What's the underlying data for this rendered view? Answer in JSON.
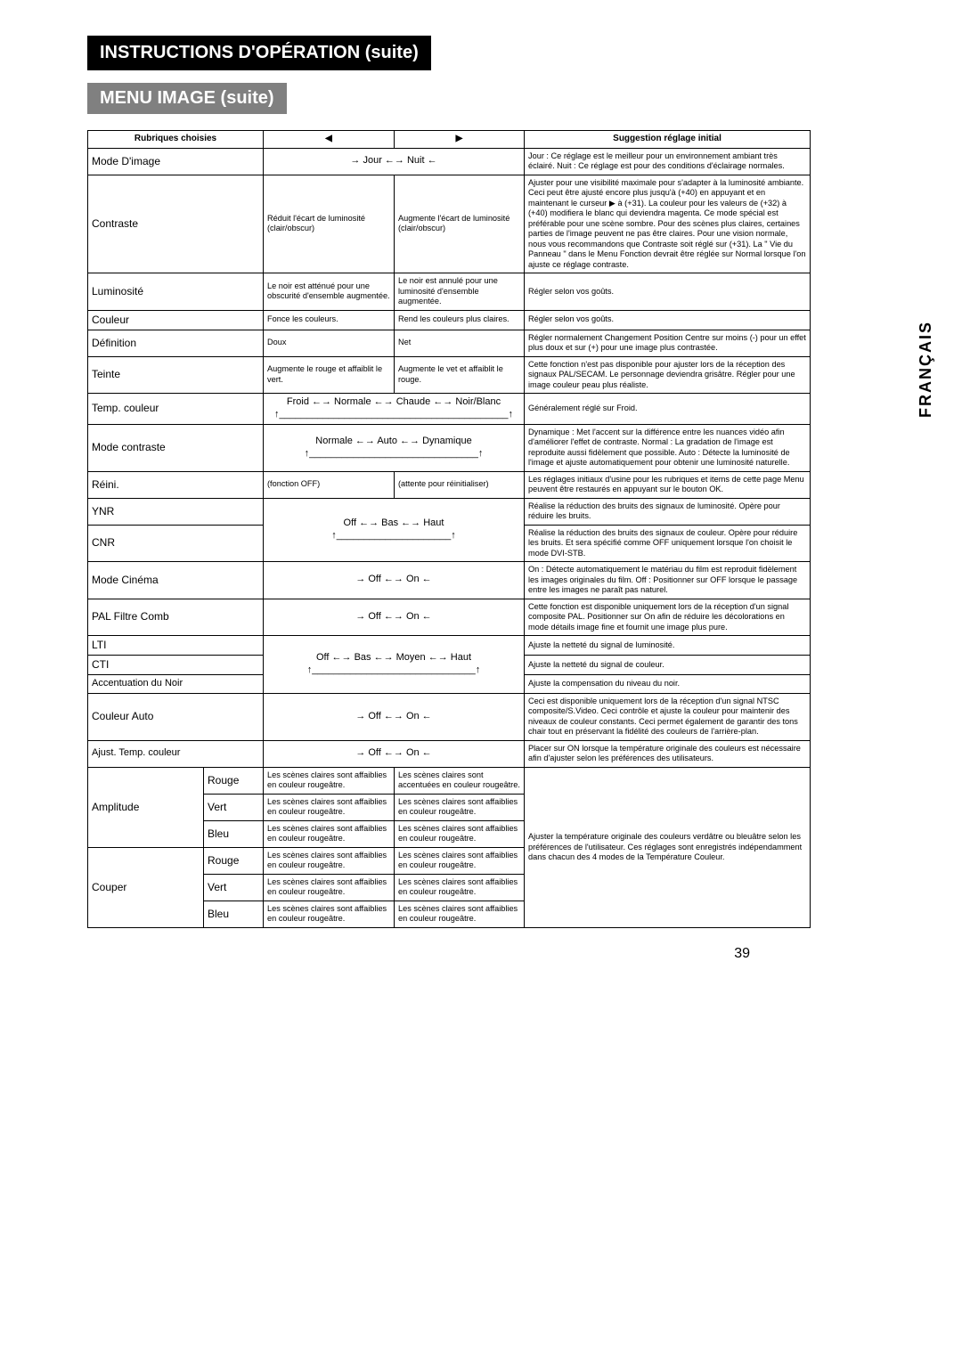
{
  "page_number": "39",
  "side_label": "FRANÇAIS",
  "title": "INSTRUCTIONS D'OPÉRATION (suite)",
  "subtitle": "MENU IMAGE  (suite)",
  "headers": {
    "col1": "Rubriques choisies",
    "col2_left": "◀",
    "col2_right": "▶",
    "col4": "Suggestion réglage initial"
  },
  "rows": {
    "mode_image": {
      "label": "Mode D'image",
      "center": "→ Jour ←→ Nuit ←",
      "sugg": "Jour : Ce réglage est le meilleur pour un environnement ambiant très éclairé.\nNuit : Ce réglage est pour des conditions d'éclairage normales."
    },
    "contraste": {
      "label": "Contraste",
      "left": "Réduit l'écart de luminosité (clair/obscur)",
      "right": "Augmente l'écart de luminosité (clair/obscur)",
      "sugg": "Ajuster pour une visibilité maximale pour s'adapter à la luminosité ambiante. Ceci peut être ajusté encore plus jusqu'à (+40) en appuyant et en maintenant le curseur ▶ à (+31). La couleur pour les valeurs de (+32) à (+40) modifiera le blanc qui deviendra magenta. Ce mode spécial est préférable pour une scène sombre. Pour des scènes plus claires, certaines parties de l'image peuvent ne pas être claires. Pour une vision normale, nous vous recommandons que Contraste soit réglé sur (+31). La \" Vie du Panneau \" dans le Menu Fonction devrait être réglée sur Normal lorsque l'on ajuste ce réglage contraste."
    },
    "luminosite": {
      "label": "Luminosité",
      "left": "Le noir est atténué pour une obscurité d'ensemble augmentée.",
      "right": "Le noir est annulé pour une luminosité d'ensemble augmentée.",
      "sugg": "Régler selon vos goûts."
    },
    "couleur": {
      "label": "Couleur",
      "left": "Fonce les couleurs.",
      "right": "Rend les couleurs plus claires.",
      "sugg": "Régler selon vos goûts."
    },
    "definition": {
      "label": "Définition",
      "left": "Doux",
      "right": "Net",
      "sugg": "Régler normalement Changement Position Centre sur moins (-) pour un effet plus doux et sur (+) pour une image plus contrastée."
    },
    "teinte": {
      "label": "Teinte",
      "left": "Augmente le rouge et affaiblit le vert.",
      "right": "Augmente le vet et affaiblit le rouge.",
      "sugg": "Cette fonction n'est pas disponible pour ajuster lors de la réception des signaux PAL/SECAM. Le personnage deviendra grisâtre. Régler pour une image couleur peau plus réaliste."
    },
    "temp_couleur": {
      "label": "Temp. couleur",
      "center": "Froid ←→ Normale ←→ Chaude ←→ Noir/Blanc",
      "sugg": "Généralement réglé sur Froid."
    },
    "mode_contraste": {
      "label": "Mode contraste",
      "center": "Normale ←→ Auto ←→ Dynamique",
      "sugg": "Dynamique : Met l'accent sur la différence entre les nuances vidéo afin d'améliorer l'effet de contraste.\nNormal : La gradation de l'image est reproduite aussi fidèlement que possible.\nAuto : Détecte la luminosité de l'image et ajuste automatiquement pour obtenir une luminosité naturelle."
    },
    "reini": {
      "label": "Réini.",
      "left": "(fonction OFF)",
      "right": "(attente pour réinitialiser)",
      "sugg": "Les réglages initiaux d'usine pour les rubriques et items de cette page Menu peuvent être restaurés en appuyant sur le bouton OK."
    },
    "ynr": {
      "label": "YNR",
      "center_shared": "Off ←→ Bas ←→ Haut",
      "sugg": "Réalise la réduction des bruits des signaux de luminosité. Opère pour réduire les bruits."
    },
    "cnr": {
      "label": "CNR",
      "sugg": "Réalise la réduction des bruits des signaux de couleur. Opère pour réduire les bruits. Et sera spécifié comme OFF uniquement lorsque l'on choisit le mode DVI-STB."
    },
    "mode_cinema": {
      "label": "Mode Cinéma",
      "center": "→ Off ←→ On ←",
      "sugg": "On : Détecte automatiquement le matériau du film est reproduit fidèlement les images originales du film.\nOff : Positionner sur OFF lorsque le passage entre les images ne paraît pas naturel."
    },
    "pal_filtre": {
      "label": "PAL Filtre Comb",
      "center": "→ Off ←→ On ←",
      "sugg": "Cette fonction est disponible uniquement lors de la réception d'un signal composite PAL. Positionner sur On afin de réduire les décolorations en mode détails image fine et fournit une image plus pure."
    },
    "lti": {
      "label": "LTI",
      "center_shared": "Off ←→ Bas ←→ Moyen ←→ Haut",
      "sugg": "Ajuste la netteté du signal de luminosité."
    },
    "cti": {
      "label": "CTI",
      "sugg": "Ajuste la netteté du signal de couleur."
    },
    "accent_noir": {
      "label": "Accentuation du Noir",
      "sugg": "Ajuste la compensation du niveau du noir."
    },
    "couleur_auto": {
      "label": "Couleur Auto",
      "center": "→ Off ←→ On ←",
      "sugg": "Ceci est disponible uniquement lors de la réception d'un signal NTSC composite/S.Video. Ceci contrôle et ajuste la couleur pour maintenir des niveaux de couleur constants. Ceci permet également de garantir des tons chair tout en préservant la fidélité des couleurs de l'arrière-plan."
    },
    "ajust_temp": {
      "label": "Ajust. Temp. couleur",
      "center": "→ Off ←→ On ←",
      "sugg": "Placer sur ON lorsque la température originale des couleurs est nécessaire afin d'ajuster selon les préférences des utilisateurs."
    },
    "amplitude": {
      "label": "Amplitude",
      "rouge_l": "Les scènes claires sont affaiblies en couleur rougeâtre.",
      "rouge_r": "Les scènes claires sont accentuées en couleur rougeâtre.",
      "vert_l": "Les scènes claires sont affaiblies en couleur rougeâtre.",
      "vert_r": "Les scènes claires sont affaiblies en couleur rougeâtre.",
      "bleu_l": "Les scènes claires sont affaiblies en couleur rougeâtre.",
      "bleu_r": "Les scènes claires sont affaiblies en couleur rougeâtre."
    },
    "couper": {
      "label": "Couper",
      "rouge_l": "Les scènes claires sont affaiblies en couleur rougeâtre.",
      "rouge_r": "Les scènes claires sont affaiblies en couleur rougeâtre.",
      "vert_l": "Les scènes claires sont affaiblies en couleur rougeâtre.",
      "vert_r": "Les scènes claires sont affaiblies en couleur rougeâtre.",
      "bleu_l": "Les scènes claires sont affaiblies en couleur rougeâtre.",
      "bleu_r": "Les scènes claires sont affaiblies en couleur rougeâtre."
    },
    "amp_couper_sugg": "Ajuster la température originale des couleurs verdâtre ou bleuâtre selon les préférences de l'utilisateur. Ces réglages sont enregistrés indépendamment dans chacun des 4 modes de la Température Couleur.",
    "sub": {
      "rouge": "Rouge",
      "vert": "Vert",
      "bleu": "Bleu"
    }
  }
}
